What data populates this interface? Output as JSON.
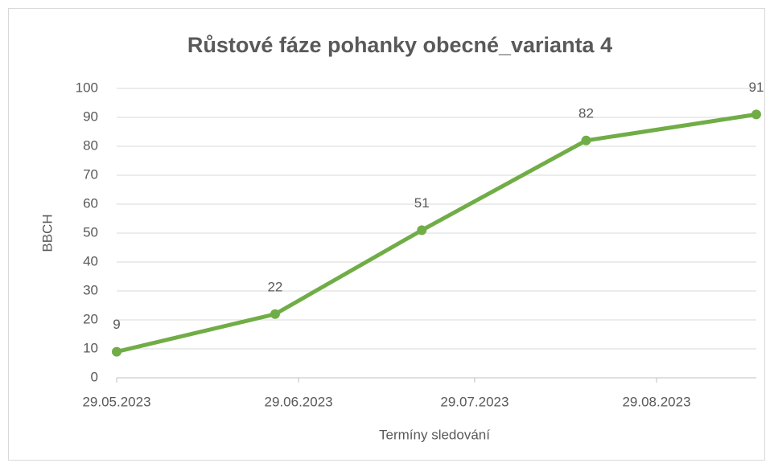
{
  "chart_data": {
    "type": "line",
    "title": "Růstové fáze pohanky obecné_varianta 4",
    "x_label": "Termíny sledování",
    "y_label": "BBCH",
    "x": [
      "2023-05-29",
      "2023-06-25",
      "2023-07-20",
      "2023-08-17",
      "2023-09-15"
    ],
    "series": [
      {
        "name": "BBCH",
        "color": "#70ad47",
        "values": [
          9,
          22,
          51,
          82,
          91
        ]
      }
    ],
    "xlim": [
      "2023-05-29",
      "2023-09-15"
    ],
    "xticks": [
      {
        "value": "2023-05-29",
        "label": "29.05.2023"
      },
      {
        "value": "2023-06-29",
        "label": "29.06.2023"
      },
      {
        "value": "2023-07-29",
        "label": "29.07.2023"
      },
      {
        "value": "2023-08-29",
        "label": "29.08.2023"
      }
    ],
    "ylim": [
      0,
      100
    ],
    "yticks": [
      0,
      10,
      20,
      30,
      40,
      50,
      60,
      70,
      80,
      90,
      100
    ],
    "grid": true
  }
}
